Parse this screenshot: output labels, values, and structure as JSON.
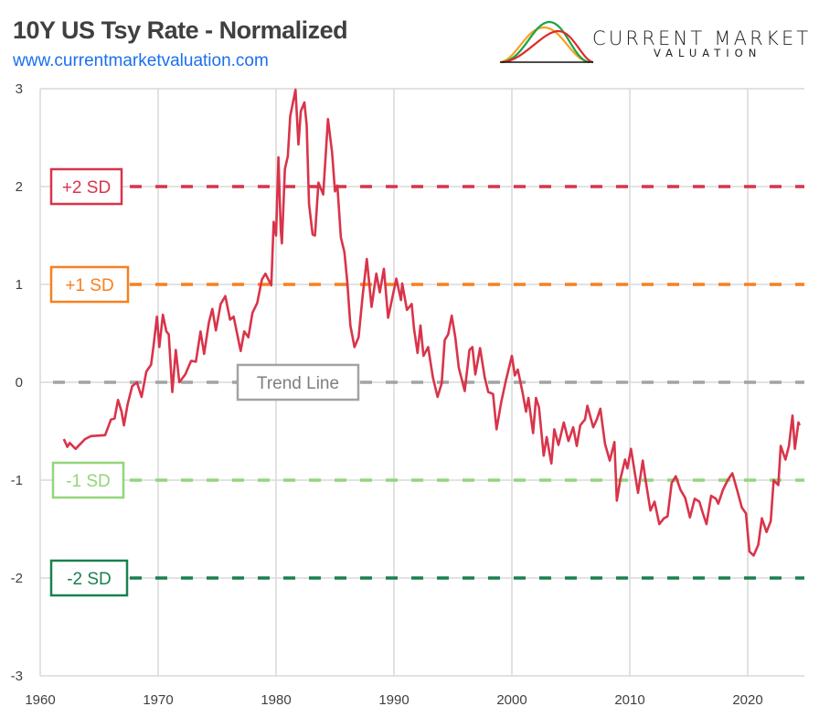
{
  "header": {
    "title": "10Y US Tsy Rate - Normalized",
    "url": "www.currentmarketvaluation.com",
    "logo_line1": "CURRENT MARKET",
    "logo_line2": "VALUATION"
  },
  "chart_data": {
    "type": "line",
    "title": "10Y US Tsy Rate - Normalized",
    "xlabel": "",
    "ylabel": "",
    "xlim": [
      1960,
      2025
    ],
    "ylim": [
      -3,
      3
    ],
    "x_ticks": [
      "1960",
      "1970",
      "1980",
      "1990",
      "2000",
      "2010",
      "2020"
    ],
    "y_ticks": [
      "3",
      "2",
      "1",
      "0",
      "-1",
      "-2",
      "-3"
    ],
    "grid": true,
    "line_color": "#d9344a",
    "reference_lines": [
      {
        "label": "+2 SD",
        "value": 2,
        "color": "#d9344a"
      },
      {
        "label": "+1 SD",
        "value": 1,
        "color": "#f7801e"
      },
      {
        "label": "Trend Line",
        "value": 0,
        "color": "#a3a3a3"
      },
      {
        "label": "-1 SD",
        "value": -1,
        "color": "#92d67a"
      },
      {
        "label": "-2 SD",
        "value": -2,
        "color": "#1a8050"
      }
    ],
    "series": [
      {
        "points": [
          [
            1962.0,
            -0.58
          ],
          [
            1962.3,
            -0.66
          ],
          [
            1962.5,
            -0.62
          ],
          [
            1963.0,
            -0.68
          ],
          [
            1963.8,
            -0.58
          ],
          [
            1964.3,
            -0.55
          ],
          [
            1965.5,
            -0.54
          ],
          [
            1966.0,
            -0.38
          ],
          [
            1966.3,
            -0.37
          ],
          [
            1966.6,
            -0.18
          ],
          [
            1966.9,
            -0.3
          ],
          [
            1967.1,
            -0.44
          ],
          [
            1967.4,
            -0.23
          ],
          [
            1967.8,
            -0.04
          ],
          [
            1968.2,
            0.0
          ],
          [
            1968.6,
            -0.15
          ],
          [
            1969.0,
            0.11
          ],
          [
            1969.4,
            0.18
          ],
          [
            1969.6,
            0.36
          ],
          [
            1969.9,
            0.67
          ],
          [
            1970.1,
            0.36
          ],
          [
            1970.4,
            0.69
          ],
          [
            1970.7,
            0.52
          ],
          [
            1970.9,
            0.49
          ],
          [
            1971.2,
            -0.1
          ],
          [
            1971.5,
            0.33
          ],
          [
            1971.8,
            0.0
          ],
          [
            1972.3,
            0.08
          ],
          [
            1972.8,
            0.22
          ],
          [
            1973.2,
            0.21
          ],
          [
            1973.6,
            0.52
          ],
          [
            1973.9,
            0.29
          ],
          [
            1974.3,
            0.61
          ],
          [
            1974.6,
            0.75
          ],
          [
            1974.9,
            0.53
          ],
          [
            1975.3,
            0.8
          ],
          [
            1975.7,
            0.88
          ],
          [
            1976.1,
            0.64
          ],
          [
            1976.4,
            0.67
          ],
          [
            1977.0,
            0.32
          ],
          [
            1977.3,
            0.52
          ],
          [
            1977.65,
            0.46
          ],
          [
            1978.0,
            0.71
          ],
          [
            1978.4,
            0.81
          ],
          [
            1978.8,
            1.05
          ],
          [
            1979.1,
            1.11
          ],
          [
            1979.6,
            0.99
          ],
          [
            1979.8,
            1.64
          ],
          [
            1980.0,
            1.5
          ],
          [
            1980.2,
            2.3
          ],
          [
            1980.4,
            1.55
          ],
          [
            1980.5,
            1.42
          ],
          [
            1980.75,
            2.18
          ],
          [
            1981.0,
            2.31
          ],
          [
            1981.2,
            2.72
          ],
          [
            1981.65,
            2.99
          ],
          [
            1981.9,
            2.43
          ],
          [
            1982.1,
            2.77
          ],
          [
            1982.4,
            2.86
          ],
          [
            1982.6,
            2.63
          ],
          [
            1982.8,
            1.82
          ],
          [
            1983.1,
            1.51
          ],
          [
            1983.3,
            1.5
          ],
          [
            1983.6,
            2.04
          ],
          [
            1984.0,
            1.92
          ],
          [
            1984.4,
            2.69
          ],
          [
            1984.75,
            2.35
          ],
          [
            1985.0,
            1.95
          ],
          [
            1985.2,
            2.01
          ],
          [
            1985.5,
            1.48
          ],
          [
            1985.8,
            1.33
          ],
          [
            1986.05,
            1.02
          ],
          [
            1986.3,
            0.58
          ],
          [
            1986.65,
            0.36
          ],
          [
            1987.0,
            0.46
          ],
          [
            1987.35,
            0.89
          ],
          [
            1987.7,
            1.26
          ],
          [
            1988.1,
            0.77
          ],
          [
            1988.5,
            1.11
          ],
          [
            1988.8,
            0.92
          ],
          [
            1989.15,
            1.16
          ],
          [
            1989.5,
            0.66
          ],
          [
            1990.2,
            1.06
          ],
          [
            1990.6,
            0.84
          ],
          [
            1990.7,
            1.01
          ],
          [
            1991.1,
            0.74
          ],
          [
            1991.5,
            0.8
          ],
          [
            1991.7,
            0.55
          ],
          [
            1992.0,
            0.3
          ],
          [
            1992.25,
            0.58
          ],
          [
            1992.5,
            0.27
          ],
          [
            1992.9,
            0.36
          ],
          [
            1993.3,
            0.05
          ],
          [
            1993.7,
            -0.15
          ],
          [
            1994.05,
            -0.01
          ],
          [
            1994.3,
            0.43
          ],
          [
            1994.6,
            0.49
          ],
          [
            1994.9,
            0.68
          ],
          [
            1995.2,
            0.46
          ],
          [
            1995.5,
            0.15
          ],
          [
            1996.0,
            -0.09
          ],
          [
            1996.4,
            0.33
          ],
          [
            1996.65,
            0.36
          ],
          [
            1996.9,
            0.08
          ],
          [
            1997.3,
            0.35
          ],
          [
            1997.7,
            0.05
          ],
          [
            1998.0,
            -0.1
          ],
          [
            1998.4,
            -0.12
          ],
          [
            1998.7,
            -0.48
          ],
          [
            1999.1,
            -0.2
          ],
          [
            1999.5,
            0.02
          ],
          [
            2000.0,
            0.27
          ],
          [
            2000.25,
            0.07
          ],
          [
            2000.5,
            0.13
          ],
          [
            2000.9,
            -0.1
          ],
          [
            2001.2,
            -0.3
          ],
          [
            2001.4,
            -0.16
          ],
          [
            2001.8,
            -0.52
          ],
          [
            2002.05,
            -0.16
          ],
          [
            2002.3,
            -0.26
          ],
          [
            2002.7,
            -0.75
          ],
          [
            2002.95,
            -0.56
          ],
          [
            2003.35,
            -0.83
          ],
          [
            2003.6,
            -0.48
          ],
          [
            2003.95,
            -0.64
          ],
          [
            2004.4,
            -0.41
          ],
          [
            2004.8,
            -0.6
          ],
          [
            2005.2,
            -0.46
          ],
          [
            2005.5,
            -0.65
          ],
          [
            2005.8,
            -0.44
          ],
          [
            2006.2,
            -0.38
          ],
          [
            2006.4,
            -0.24
          ],
          [
            2006.9,
            -0.46
          ],
          [
            2007.2,
            -0.38
          ],
          [
            2007.5,
            -0.27
          ],
          [
            2007.9,
            -0.63
          ],
          [
            2008.3,
            -0.8
          ],
          [
            2008.7,
            -0.61
          ],
          [
            2008.9,
            -1.21
          ],
          [
            2009.2,
            -0.99
          ],
          [
            2009.6,
            -0.79
          ],
          [
            2009.8,
            -0.88
          ],
          [
            2010.1,
            -0.68
          ],
          [
            2010.7,
            -1.13
          ],
          [
            2011.1,
            -0.8
          ],
          [
            2011.3,
            -0.97
          ],
          [
            2011.75,
            -1.31
          ],
          [
            2012.1,
            -1.22
          ],
          [
            2012.5,
            -1.45
          ],
          [
            2012.9,
            -1.39
          ],
          [
            2013.2,
            -1.37
          ],
          [
            2013.55,
            -1.03
          ],
          [
            2013.9,
            -0.96
          ],
          [
            2014.3,
            -1.1
          ],
          [
            2014.7,
            -1.18
          ],
          [
            2015.1,
            -1.38
          ],
          [
            2015.5,
            -1.19
          ],
          [
            2015.9,
            -1.22
          ],
          [
            2016.2,
            -1.34
          ],
          [
            2016.5,
            -1.45
          ],
          [
            2016.9,
            -1.16
          ],
          [
            2017.3,
            -1.19
          ],
          [
            2017.5,
            -1.24
          ],
          [
            2017.9,
            -1.1
          ],
          [
            2018.3,
            -1.0
          ],
          [
            2018.7,
            -0.93
          ],
          [
            2019.1,
            -1.1
          ],
          [
            2019.5,
            -1.28
          ],
          [
            2019.85,
            -1.34
          ],
          [
            2020.15,
            -1.73
          ],
          [
            2020.5,
            -1.77
          ],
          [
            2020.9,
            -1.66
          ],
          [
            2021.2,
            -1.39
          ],
          [
            2021.6,
            -1.53
          ],
          [
            2021.95,
            -1.42
          ],
          [
            2022.2,
            -1.0
          ],
          [
            2022.6,
            -1.05
          ],
          [
            2022.8,
            -0.65
          ],
          [
            2023.2,
            -0.79
          ],
          [
            2023.5,
            -0.65
          ],
          [
            2023.8,
            -0.34
          ],
          [
            2024.0,
            -0.68
          ],
          [
            2024.3,
            -0.41
          ],
          [
            2024.4,
            -0.44
          ]
        ]
      }
    ]
  }
}
